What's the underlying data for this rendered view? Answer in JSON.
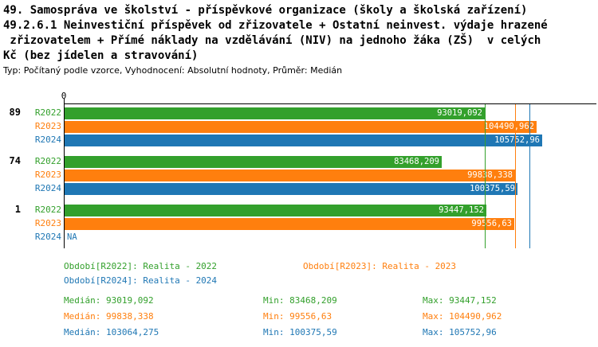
{
  "colors": {
    "r2022": "#33a02c",
    "r2023": "#ff7f0e",
    "r2024": "#1f77b4"
  },
  "chart_data": {
    "type": "bar",
    "orientation": "horizontal",
    "title_lines": [
      "49. Samospráva ve školství - příspěvkové organizace (školy a školská zařízení)",
      "49.2.6.1 Neinvestiční příspěvek od zřizovatele + Ostatní neinvest. výdaje hrazené",
      " zřizovatelem + Přímé náklady na vzdělávání (NIV) na jednoho žáka (ZŠ)  v celých",
      "Kč (bez jídelen a stravování)"
    ],
    "subtitle": "Typ: Počítaný podle vzorce, Vyhodnocení: Absolutní hodnoty, Průměr: Medián",
    "x_axis": {
      "origin_label": "0",
      "min": 0,
      "max": 118000
    },
    "series_names": [
      "R2022",
      "R2023",
      "R2024"
    ],
    "groups": [
      {
        "label": "89",
        "bars": [
          {
            "series": "R2022",
            "value": 93019.092,
            "display": "93019,092"
          },
          {
            "series": "R2023",
            "value": 104490.962,
            "display": "104490,962"
          },
          {
            "series": "R2024",
            "value": 105752.96,
            "display": "105752,96"
          }
        ]
      },
      {
        "label": "74",
        "bars": [
          {
            "series": "R2022",
            "value": 83468.209,
            "display": "83468,209"
          },
          {
            "series": "R2023",
            "value": 99838.338,
            "display": "99838,338"
          },
          {
            "series": "R2024",
            "value": 100375.59,
            "display": "100375,59"
          }
        ]
      },
      {
        "label": "1",
        "bars": [
          {
            "series": "R2022",
            "value": 93447.152,
            "display": "93447,152"
          },
          {
            "series": "R2023",
            "value": 99556.63,
            "display": "99556,63"
          },
          {
            "series": "R2024",
            "value": null,
            "display": "NA"
          }
        ]
      }
    ],
    "median_lines": [
      {
        "series": "R2022",
        "value": 93019.092
      },
      {
        "series": "R2023",
        "value": 99838.338
      },
      {
        "series": "R2024",
        "value": 103064.275
      }
    ],
    "legend": [
      {
        "series": "R2022",
        "label": "Období[R2022]: Realita - 2022"
      },
      {
        "series": "R2023",
        "label": "Období[R2023]: Realita - 2023"
      },
      {
        "series": "R2024",
        "label": "Období[R2024]: Realita - 2024"
      }
    ],
    "stats": [
      {
        "series": "R2022",
        "median": "Medián: 93019,092",
        "min": "Min: 83468,209",
        "max": "Max: 93447,152"
      },
      {
        "series": "R2023",
        "median": "Medián: 99838,338",
        "min": "Min: 99556,63",
        "max": "Max: 104490,962"
      },
      {
        "series": "R2024",
        "median": "Medián: 103064,275",
        "min": "Min: 100375,59",
        "max": "Max: 105752,96"
      }
    ]
  }
}
